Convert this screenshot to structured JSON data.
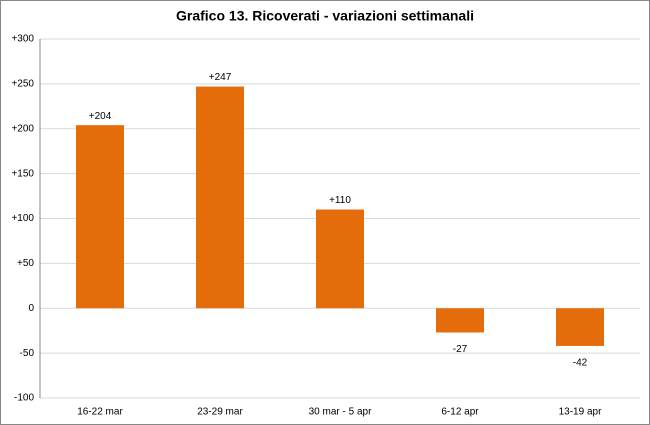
{
  "chart_data": {
    "type": "bar",
    "title": "Grafico 13. Ricoverati - variazioni settimanali",
    "categories": [
      "16-22 mar",
      "23-29 mar",
      "30 mar - 5 apr",
      "6-12 apr",
      "13-19 apr"
    ],
    "values": [
      204,
      247,
      110,
      -27,
      -42
    ],
    "value_labels": [
      "+204",
      "+247",
      "+110",
      "-27",
      "-42"
    ],
    "color": "#e46c0a",
    "ylim": [
      -100,
      300
    ],
    "yticks": [
      -100,
      -50,
      0,
      {
        "value": 50,
        "label": "+50"
      },
      {
        "value": 100,
        "label": "+100"
      },
      {
        "value": 150,
        "label": "+150"
      },
      {
        "value": 200,
        "label": "+200"
      },
      {
        "value": 250,
        "label": "+250"
      },
      {
        "value": 300,
        "label": "+300"
      }
    ],
    "grid": true
  }
}
